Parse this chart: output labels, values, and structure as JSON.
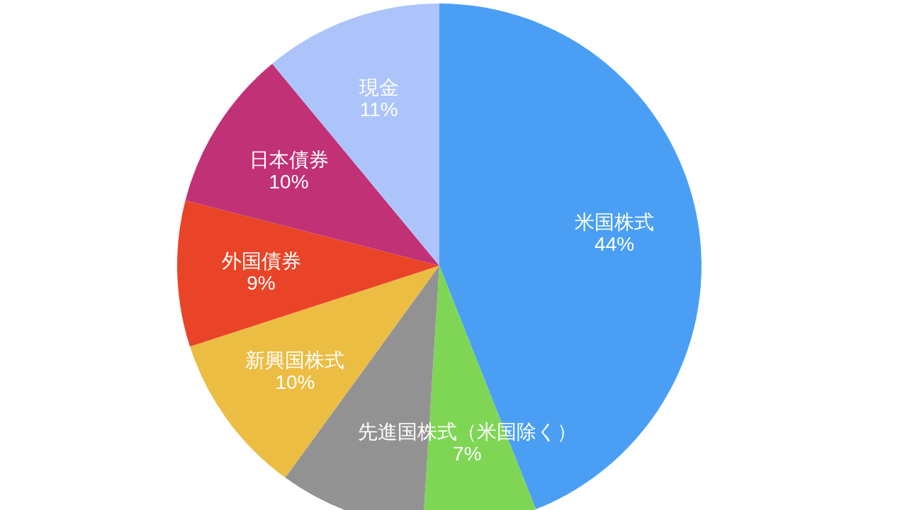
{
  "chart_data": {
    "type": "pie",
    "categories": [
      "米国株式",
      "先進国株式（米国除く）",
      null,
      "新興国株式",
      "外国債券",
      "日本債券",
      "現金"
    ],
    "values": [
      44,
      7,
      9,
      10,
      9,
      10,
      11
    ],
    "colors": [
      "#4a9ff5",
      "#7fd655",
      "#929292",
      "#ecbd43",
      "#e94427",
      "#c13176",
      "#adc4fb"
    ],
    "value_labels": [
      "44%",
      "7%",
      null,
      "10%",
      "9%",
      "10%",
      "11%"
    ]
  }
}
